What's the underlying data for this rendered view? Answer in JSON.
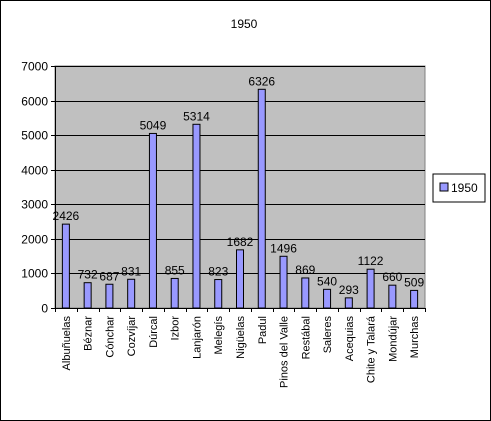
{
  "chart_data": {
    "type": "bar",
    "title": "1950",
    "categories": [
      "Albuñuelas",
      "Béznar",
      "Cónchar",
      "Cozvíjar",
      "Dúrcal",
      "Izbor",
      "Lanjarón",
      "Melegís",
      "Nigüelas",
      "Padul",
      "Pinos del Valle",
      "Restábal",
      "Saleres",
      "Acequias",
      "Chite y Talará",
      "Mondújar",
      "Murchas"
    ],
    "series": [
      {
        "name": "1950",
        "values": [
          2426,
          732,
          687,
          831,
          5049,
          855,
          5314,
          823,
          1682,
          6326,
          1496,
          869,
          540,
          293,
          1122,
          660,
          509
        ]
      }
    ],
    "ylim": [
      0,
      7000
    ],
    "yticks": [
      0,
      1000,
      2000,
      3000,
      4000,
      5000,
      6000,
      7000
    ],
    "grid": true,
    "legend": "right",
    "colors": {
      "plot_background": "#c0c0c0",
      "bar_fill": "#9999ff",
      "bar_stroke": "#000000",
      "gridline": "#000000"
    }
  }
}
